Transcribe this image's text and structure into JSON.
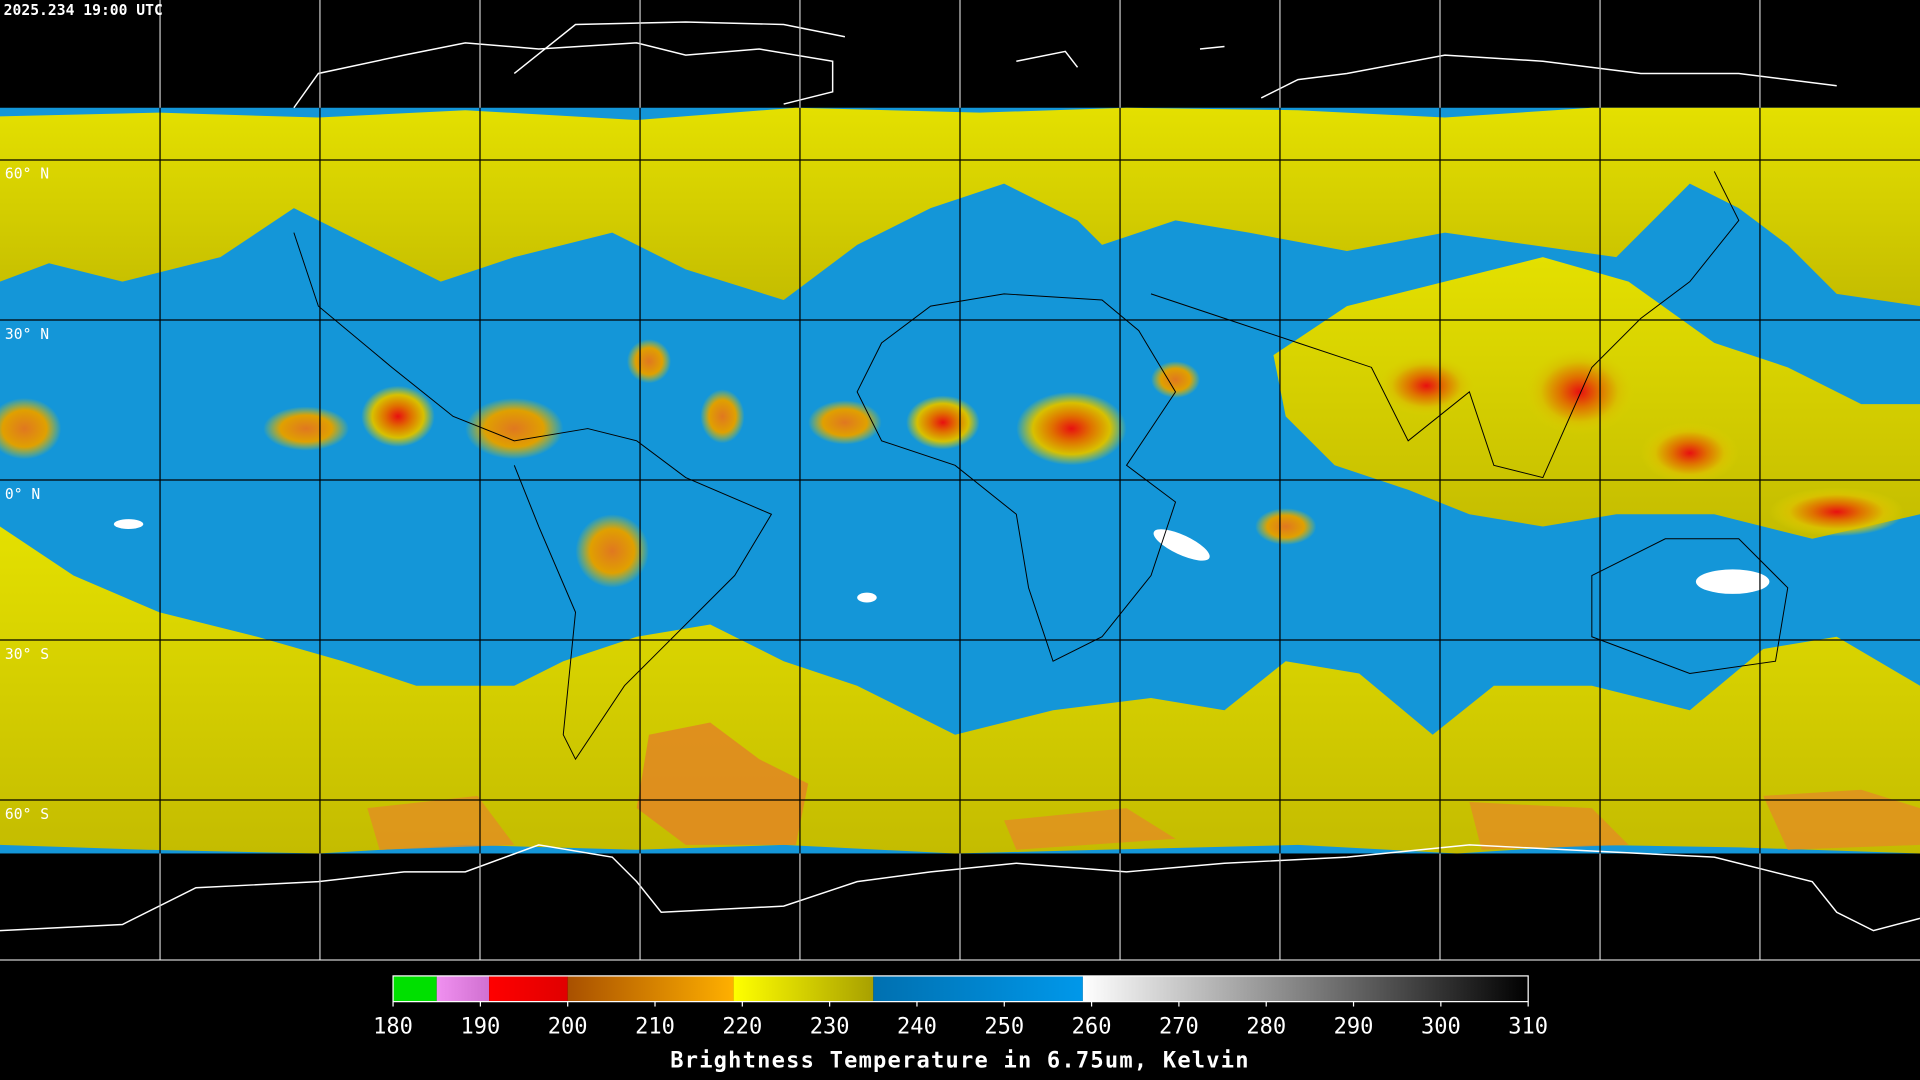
{
  "header": {
    "timestamp": "2025.234 19:00 UTC"
  },
  "map": {
    "latitude_labels": [
      "60° N",
      "30° N",
      "0° N",
      "30° S",
      "60° S"
    ]
  },
  "colorbar": {
    "range": [
      180,
      310
    ],
    "ticks": [
      180,
      190,
      200,
      210,
      220,
      230,
      240,
      250,
      260,
      270,
      280,
      290,
      300,
      310
    ],
    "segments": [
      {
        "from": 180,
        "to": 185,
        "colors": [
          "#00e000",
          "#00e000"
        ]
      },
      {
        "from": 185,
        "to": 191,
        "colors": [
          "#f090f0",
          "#d070d0"
        ]
      },
      {
        "from": 191,
        "to": 200,
        "colors": [
          "#ff0000",
          "#e00000"
        ]
      },
      {
        "from": 200,
        "to": 219,
        "colors": [
          "#a85000",
          "#ffb000"
        ]
      },
      {
        "from": 219,
        "to": 235,
        "colors": [
          "#ffff00",
          "#a8a000"
        ]
      },
      {
        "from": 235,
        "to": 259,
        "colors": [
          "#0070b0",
          "#0098ea"
        ]
      },
      {
        "from": 259,
        "to": 310,
        "colors": [
          "#ffffff",
          "#000000"
        ]
      }
    ],
    "title": "Brightness Temperature in 6.75um, Kelvin"
  }
}
